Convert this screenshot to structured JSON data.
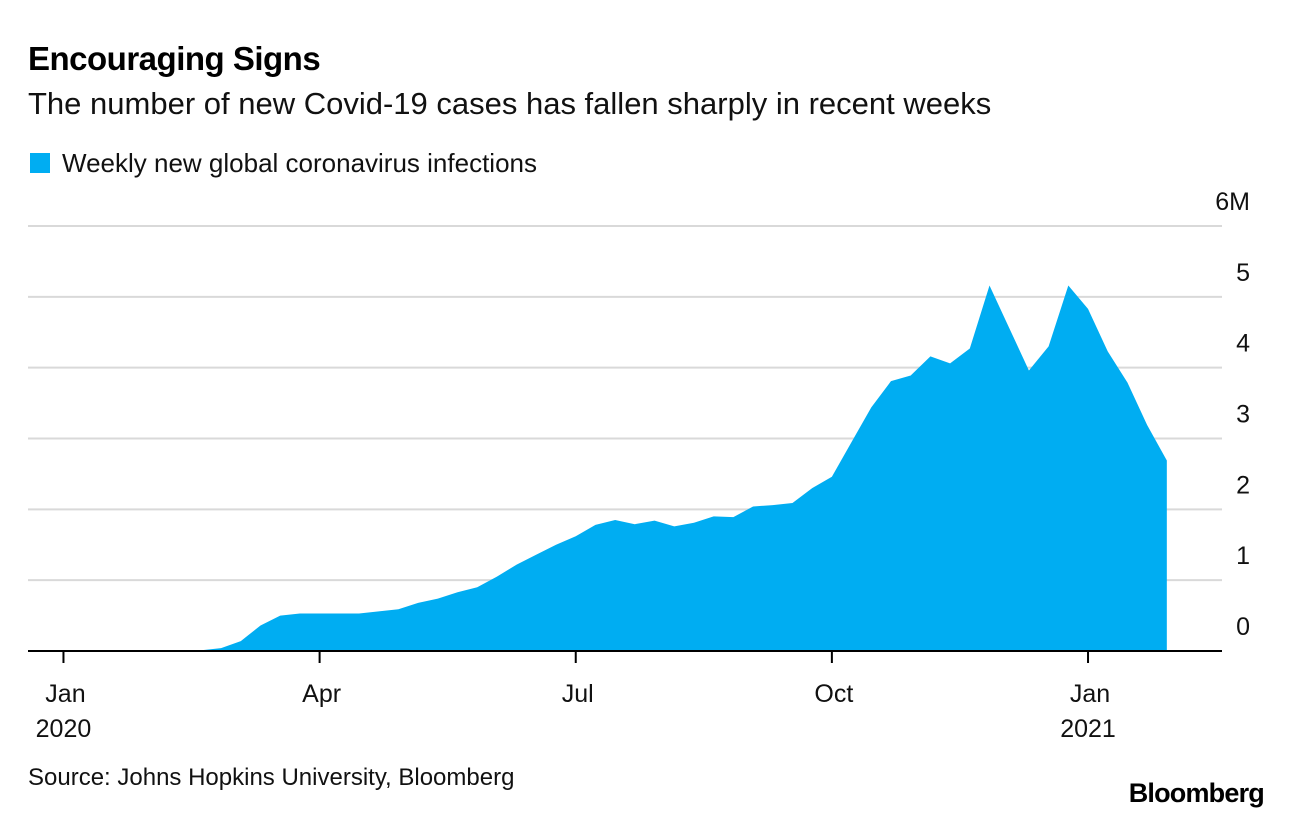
{
  "header": {
    "title": "Encouraging Signs",
    "subtitle": "The number of new Covid-19 cases has fallen sharply in recent weeks"
  },
  "footer": {
    "source": "Source: Johns Hopkins University, Bloomberg",
    "brand": "Bloomberg"
  },
  "colors": {
    "area": "#00adf2",
    "grid": "#d9d9d9",
    "axis": "#000000"
  },
  "chart_data": {
    "type": "area",
    "title": "Encouraging Signs",
    "subtitle": "The number of new Covid-19 cases has fallen sharply in recent weeks",
    "legend": [
      "Weekly new global coronavirus infections"
    ],
    "legend_position": "top-left",
    "xlabel": "",
    "ylabel": "",
    "y_unit_label": "6M",
    "ylim": [
      0,
      6
    ],
    "yticks": [
      0,
      1,
      2,
      3,
      4,
      5,
      6
    ],
    "ytick_labels": [
      "0",
      "1",
      "2",
      "3",
      "4",
      "5",
      "6M"
    ],
    "xticks": [
      {
        "label": "Jan",
        "sublabel": "2020",
        "week": 0
      },
      {
        "label": "Apr",
        "sublabel": "",
        "week": 13
      },
      {
        "label": "Jul",
        "sublabel": "",
        "week": 26
      },
      {
        "label": "Oct",
        "sublabel": "",
        "week": 39
      },
      {
        "label": "Jan",
        "sublabel": "2021",
        "week": 52
      }
    ],
    "x_domain_weeks": [
      -1.8,
      58.8
    ],
    "grid": true,
    "series": [
      {
        "name": "Weekly new global coronavirus infections",
        "unit": "millions",
        "start_week": 0,
        "values": [
          0.0,
          0.0,
          0.01,
          0.01,
          0.0,
          0.0,
          0.0,
          0.01,
          0.04,
          0.14,
          0.36,
          0.5,
          0.53,
          0.53,
          0.53,
          0.53,
          0.56,
          0.59,
          0.68,
          0.74,
          0.83,
          0.9,
          1.05,
          1.22,
          1.36,
          1.5,
          1.62,
          1.78,
          1.85,
          1.79,
          1.84,
          1.76,
          1.81,
          1.9,
          1.89,
          2.04,
          2.06,
          2.09,
          2.3,
          2.46,
          2.95,
          3.44,
          3.81,
          3.89,
          4.16,
          4.06,
          4.27,
          5.16,
          4.56,
          3.96,
          4.3,
          5.16,
          4.83,
          4.23,
          3.79,
          3.19,
          2.69
        ]
      }
    ]
  }
}
